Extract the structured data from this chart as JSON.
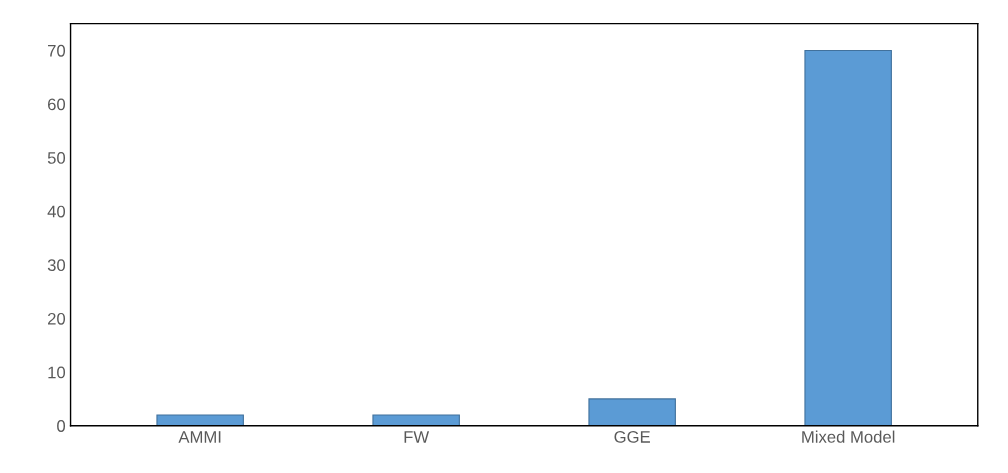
{
  "chart_data": {
    "type": "bar",
    "categories": [
      "AMMI",
      "FW",
      "GGE",
      "Mixed Model"
    ],
    "values": [
      2,
      2,
      5,
      70
    ],
    "color": "#5b9bd5",
    "ylim": [
      0,
      75
    ],
    "yticks": [
      0,
      10,
      20,
      30,
      40,
      50,
      60,
      70
    ],
    "grid": false,
    "legend": false
  }
}
